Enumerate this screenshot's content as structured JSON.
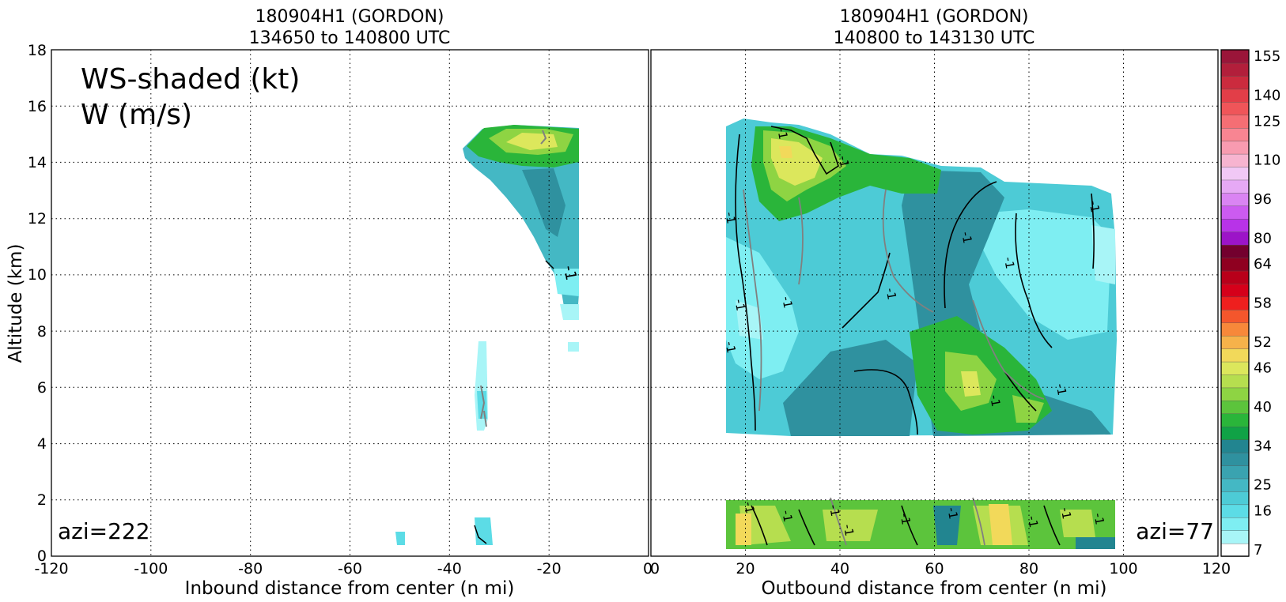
{
  "chart_data": [
    {
      "type": "contour",
      "panel": "left",
      "title": "180904H1 (GORDON)",
      "subtitle": "134650 to 140800 UTC",
      "xlabel": "Inbound distance from center (n mi)",
      "ylabel": "Altitude (km)",
      "xlim": [
        -120,
        0
      ],
      "ylim": [
        0,
        18
      ],
      "xticks": [
        -120,
        -100,
        -80,
        -60,
        -40,
        -20,
        0
      ],
      "yticks": [
        0,
        2,
        4,
        6,
        8,
        10,
        12,
        14,
        16,
        18
      ],
      "grid": true,
      "legend_lines": [
        "WS-shaded (kt)",
        "W (m/s)"
      ],
      "annotation": "azi=222",
      "contour_labels": [
        {
          "text": "-1",
          "x": -17,
          "y": 10.3
        }
      ]
    },
    {
      "type": "contour",
      "panel": "right",
      "title": "180904H1 (GORDON)",
      "subtitle": "140800 to 143130 UTC",
      "xlabel": "Outbound distance from center (n mi)",
      "xlim": [
        0,
        120
      ],
      "ylim": [
        0,
        18
      ],
      "xticks": [
        0,
        20,
        40,
        60,
        80,
        100,
        120
      ],
      "yticks": [
        0,
        2,
        4,
        6,
        8,
        10,
        12,
        14,
        16,
        18
      ],
      "grid": true,
      "annotation": "azi=77",
      "contour_labels": [
        {
          "text": "-1",
          "x": 27,
          "y": 15.0
        },
        {
          "text": "-1",
          "x": 40,
          "y": 14.0
        },
        {
          "text": "-1",
          "x": 16,
          "y": 12.0
        },
        {
          "text": "-1",
          "x": 18,
          "y": 8.9
        },
        {
          "text": "-1",
          "x": 28,
          "y": 9.0
        },
        {
          "text": "-1",
          "x": 50,
          "y": 9.3
        },
        {
          "text": "-1",
          "x": 66,
          "y": 11.3
        },
        {
          "text": "-1",
          "x": 75,
          "y": 10.4
        },
        {
          "text": "-1",
          "x": 93,
          "y": 12.4
        },
        {
          "text": "-1",
          "x": 16,
          "y": 7.4
        },
        {
          "text": "-1",
          "x": 72,
          "y": 5.5
        },
        {
          "text": "-1",
          "x": 86,
          "y": 5.9
        },
        {
          "text": "-1",
          "x": 20,
          "y": 1.7
        },
        {
          "text": "-1",
          "x": 28,
          "y": 1.4
        },
        {
          "text": "-1",
          "x": 38,
          "y": 1.6
        },
        {
          "text": "-1",
          "x": 41,
          "y": 0.9
        },
        {
          "text": "-1",
          "x": 53,
          "y": 1.3
        },
        {
          "text": "-1",
          "x": 63,
          "y": 1.5
        },
        {
          "text": "-1",
          "x": 80,
          "y": 1.2
        },
        {
          "text": "-1",
          "x": 87,
          "y": 1.5
        },
        {
          "text": "-1",
          "x": 94,
          "y": 1.3
        }
      ]
    }
  ],
  "colorbar": {
    "label_values": [
      7,
      16,
      25,
      34,
      40,
      46,
      52,
      58,
      64,
      80,
      96,
      110,
      125,
      140,
      155
    ],
    "colors": [
      "#ffffff",
      "#a8f5f7",
      "#7eeef2",
      "#5cdce6",
      "#4dcbd6",
      "#44b8c4",
      "#3aa3b0",
      "#2f919f",
      "#228590",
      "#10a246",
      "#2ab53a",
      "#5cc43c",
      "#8ed443",
      "#b6de4f",
      "#dce75c",
      "#f2d95a",
      "#f6b24a",
      "#f7883a",
      "#f4562c",
      "#ee1f1e",
      "#d5001a",
      "#b8001a",
      "#8f0020",
      "#73002e",
      "#9c14c8",
      "#b833e8",
      "#cc5bf0",
      "#da84f3",
      "#e6a9f5",
      "#f1c8f5",
      "#f7b4d0",
      "#f89bb0",
      "#f88592",
      "#f56e74",
      "#ef5559",
      "#e23e48",
      "#cb2b3e",
      "#b21f3b",
      "#9a1539"
    ]
  }
}
